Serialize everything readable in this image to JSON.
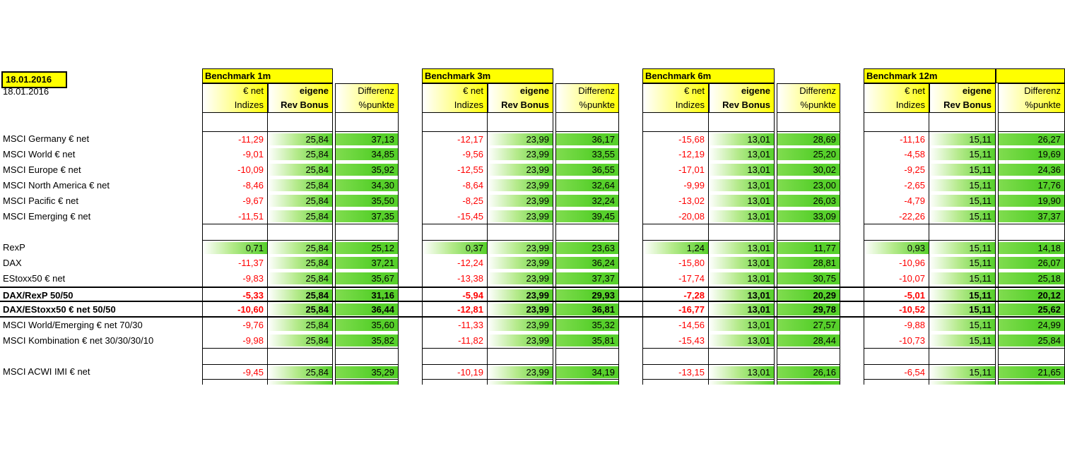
{
  "date_badge": "18.01.2016",
  "date_label": "18.01.2016",
  "groups": [
    {
      "title": "Benchmark 1m"
    },
    {
      "title": "Benchmark 3m"
    },
    {
      "title": "Benchmark 6m"
    },
    {
      "title": "Benchmark 12m"
    }
  ],
  "column_headers": {
    "index_line1": "€ net",
    "index_line2": "Indizes",
    "own_line1": "eigene",
    "own_line2": "Rev Bonus",
    "diff_line1": "Differenz",
    "diff_line2": "%punkte"
  },
  "colors": {
    "header_yellow": "#ffff00",
    "gradient_green": "#57d02b",
    "negative_red": "#ff0000"
  },
  "rows": [
    {
      "type": "data",
      "label": "MSCI Germany € net",
      "bold": false,
      "bt": true,
      "cells": [
        [
          "-11,29",
          "25,84",
          "37,13"
        ],
        [
          "-12,17",
          "23,99",
          "36,17"
        ],
        [
          "-15,68",
          "13,01",
          "28,69"
        ],
        [
          "-11,16",
          "15,11",
          "26,27"
        ]
      ]
    },
    {
      "type": "data",
      "label": "MSCI World € net",
      "bold": false,
      "cells": [
        [
          "-9,01",
          "25,84",
          "34,85"
        ],
        [
          "-9,56",
          "23,99",
          "33,55"
        ],
        [
          "-12,19",
          "13,01",
          "25,20"
        ],
        [
          "-4,58",
          "15,11",
          "19,69"
        ]
      ]
    },
    {
      "type": "data",
      "label": "MSCI Europe € net",
      "bold": false,
      "cells": [
        [
          "-10,09",
          "25,84",
          "35,92"
        ],
        [
          "-12,55",
          "23,99",
          "36,55"
        ],
        [
          "-17,01",
          "13,01",
          "30,02"
        ],
        [
          "-9,25",
          "15,11",
          "24,36"
        ]
      ]
    },
    {
      "type": "data",
      "label": "MSCI North America € net",
      "bold": false,
      "cells": [
        [
          "-8,46",
          "25,84",
          "34,30"
        ],
        [
          "-8,64",
          "23,99",
          "32,64"
        ],
        [
          "-9,99",
          "13,01",
          "23,00"
        ],
        [
          "-2,65",
          "15,11",
          "17,76"
        ]
      ]
    },
    {
      "type": "data",
      "label": "MSCI Pacific € net",
      "bold": false,
      "cells": [
        [
          "-9,67",
          "25,84",
          "35,50"
        ],
        [
          "-8,25",
          "23,99",
          "32,24"
        ],
        [
          "-13,02",
          "13,01",
          "26,03"
        ],
        [
          "-4,79",
          "15,11",
          "19,90"
        ]
      ]
    },
    {
      "type": "data",
      "label": "MSCI Emerging € net",
      "bold": false,
      "bb": true,
      "cells": [
        [
          "-11,51",
          "25,84",
          "37,35"
        ],
        [
          "-15,45",
          "23,99",
          "39,45"
        ],
        [
          "-20,08",
          "13,01",
          "33,09"
        ],
        [
          "-22,26",
          "15,11",
          "37,37"
        ]
      ]
    },
    {
      "type": "spacer"
    },
    {
      "type": "data",
      "label": "RexP",
      "bold": false,
      "bt": true,
      "cells": [
        [
          "0,71",
          "25,84",
          "25,12"
        ],
        [
          "0,37",
          "23,99",
          "23,63"
        ],
        [
          "1,24",
          "13,01",
          "11,77"
        ],
        [
          "0,93",
          "15,11",
          "14,18"
        ]
      ]
    },
    {
      "type": "data",
      "label": "DAX",
      "bold": false,
      "cells": [
        [
          "-11,37",
          "25,84",
          "37,21"
        ],
        [
          "-12,24",
          "23,99",
          "36,24"
        ],
        [
          "-15,80",
          "13,01",
          "28,81"
        ],
        [
          "-10,96",
          "15,11",
          "26,07"
        ]
      ]
    },
    {
      "type": "data",
      "label": "EStoxx50 € net",
      "bold": false,
      "cells": [
        [
          "-9,83",
          "25,84",
          "35,67"
        ],
        [
          "-13,38",
          "23,99",
          "37,37"
        ],
        [
          "-17,74",
          "13,01",
          "30,75"
        ],
        [
          "-10,07",
          "15,11",
          "25,18"
        ]
      ]
    },
    {
      "type": "data",
      "label": "DAX/RexP 50/50",
      "bold": true,
      "thick_top": true,
      "thick_bottom": true,
      "cells": [
        [
          "-5,33",
          "25,84",
          "31,16"
        ],
        [
          "-5,94",
          "23,99",
          "29,93"
        ],
        [
          "-7,28",
          "13,01",
          "20,29"
        ],
        [
          "-5,01",
          "15,11",
          "20,12"
        ]
      ]
    },
    {
      "type": "data",
      "label": "DAX/EStoxx50 € net 50/50",
      "bold": true,
      "thick_bottom": true,
      "cells": [
        [
          "-10,60",
          "25,84",
          "36,44"
        ],
        [
          "-12,81",
          "23,99",
          "36,81"
        ],
        [
          "-16,77",
          "13,01",
          "29,78"
        ],
        [
          "-10,52",
          "15,11",
          "25,62"
        ]
      ]
    },
    {
      "type": "data",
      "label": "MSCI World/Emerging € net 70/30",
      "bold": false,
      "cells": [
        [
          "-9,76",
          "25,84",
          "35,60"
        ],
        [
          "-11,33",
          "23,99",
          "35,32"
        ],
        [
          "-14,56",
          "13,01",
          "27,57"
        ],
        [
          "-9,88",
          "15,11",
          "24,99"
        ]
      ]
    },
    {
      "type": "data",
      "label": "MSCI Kombination € net 30/30/30/10",
      "bold": false,
      "bb": true,
      "cells": [
        [
          "-9,98",
          "25,84",
          "35,82"
        ],
        [
          "-11,82",
          "23,99",
          "35,81"
        ],
        [
          "-15,43",
          "13,01",
          "28,44"
        ],
        [
          "-10,73",
          "15,11",
          "25,84"
        ]
      ]
    },
    {
      "type": "spacer"
    },
    {
      "type": "data",
      "label": "MSCI ACWI IMI € net",
      "bold": false,
      "bt": true,
      "bb": true,
      "cells": [
        [
          "-9,45",
          "25,84",
          "35,29"
        ],
        [
          "-10,19",
          "23,99",
          "34,19"
        ],
        [
          "-13,15",
          "13,01",
          "26,16"
        ],
        [
          "-6,54",
          "15,11",
          "21,65"
        ]
      ]
    }
  ]
}
